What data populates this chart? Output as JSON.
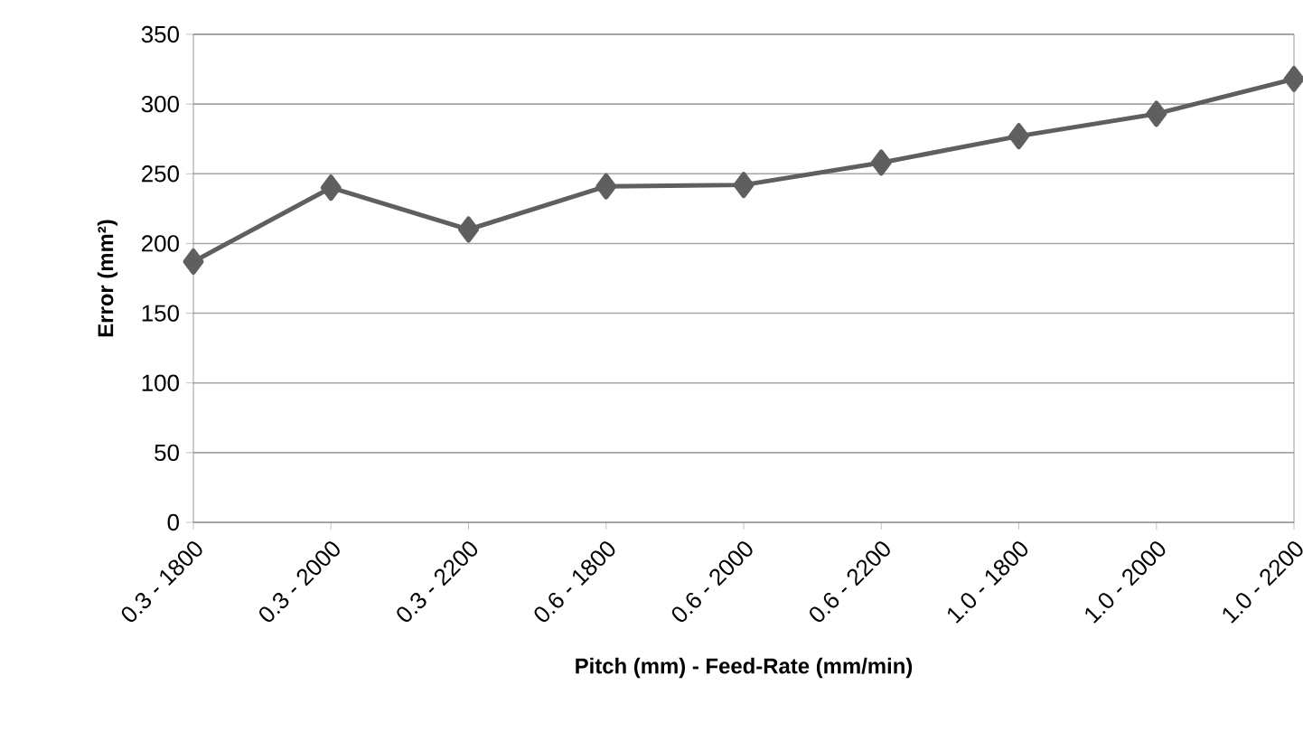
{
  "chart_data": {
    "type": "line",
    "xlabel": "Pitch (mm) - Feed-Rate (mm/min)",
    "ylabel": "Error (mm²)",
    "categories": [
      "0.3 - 1800",
      "0.3 - 2000",
      "0.3 - 2200",
      "0.6 - 1800",
      "0.6 - 2000",
      "0.6 - 2200",
      "1.0 - 1800",
      "1.0 - 2000",
      "1.0 - 2200"
    ],
    "values": [
      187,
      240,
      210,
      241,
      242,
      258,
      277,
      293,
      318
    ],
    "color": "#5f5f5f",
    "ylim": [
      0,
      350
    ],
    "yticks": [
      0,
      50,
      100,
      150,
      200,
      250,
      300,
      350
    ],
    "grid": "y",
    "marker": "diamond",
    "line_style": "solid"
  }
}
